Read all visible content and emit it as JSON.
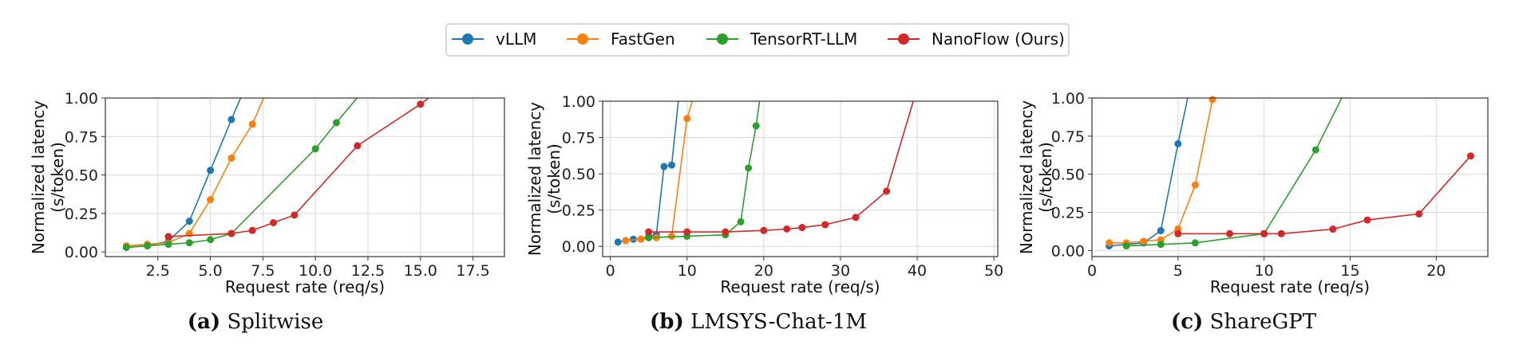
{
  "legend": [
    {
      "name": "vLLM",
      "color": "#1f77b4"
    },
    {
      "name": "FastGen",
      "color": "#ff7f0e"
    },
    {
      "name": "TensorRT-LLM",
      "color": "#2ca02c"
    },
    {
      "name": "NanoFlow (Ours)",
      "color": "#d62728"
    }
  ],
  "chart_data": [
    {
      "type": "line",
      "caption_tag": "(a)",
      "caption_title": "Splitwise",
      "xlabel": "Request rate (req/s)",
      "ylabel": "Normalized latency\n(s/token)",
      "xlim": [
        0,
        19
      ],
      "ylim": [
        -0.03,
        1.0
      ],
      "xticks": [
        2.5,
        5.0,
        7.5,
        10.0,
        12.5,
        15.0,
        17.5
      ],
      "xtick_labels": [
        "2.5",
        "5.0",
        "7.5",
        "10.0",
        "12.5",
        "15.0",
        "17.5"
      ],
      "yticks": [
        0.0,
        0.25,
        0.5,
        0.75,
        1.0
      ],
      "ytick_labels": [
        "0.00",
        "0.25",
        "0.50",
        "0.75",
        "1.00"
      ],
      "grid": true,
      "series": [
        {
          "name": "vLLM",
          "color": "#1f77b4",
          "x": [
            1,
            2,
            3,
            4,
            5,
            6,
            6.5
          ],
          "y": [
            0.03,
            0.04,
            0.07,
            0.2,
            0.53,
            0.86,
            1.02
          ]
        },
        {
          "name": "FastGen",
          "color": "#ff7f0e",
          "x": [
            1,
            2,
            3,
            4,
            5,
            6,
            7,
            7.6
          ],
          "y": [
            0.04,
            0.05,
            0.06,
            0.12,
            0.34,
            0.61,
            0.83,
            1.02
          ]
        },
        {
          "name": "TensorRT-LLM",
          "color": "#2ca02c",
          "x": [
            1,
            2,
            3,
            4,
            5,
            6,
            10,
            11,
            12.1
          ],
          "y": [
            0.03,
            0.04,
            0.05,
            0.06,
            0.08,
            0.12,
            0.67,
            0.84,
            1.02
          ]
        },
        {
          "name": "NanoFlow (Ours)",
          "color": "#d62728",
          "x": [
            3,
            6,
            7,
            8,
            9,
            12,
            15,
            15.6
          ],
          "y": [
            0.1,
            0.12,
            0.14,
            0.19,
            0.24,
            0.69,
            0.96,
            1.02
          ]
        }
      ]
    },
    {
      "type": "line",
      "caption_tag": "(b)",
      "caption_title": "LMSYS-Chat-1M",
      "xlabel": "Request rate (req/s)",
      "ylabel": "Normalized latency\n(s/token)",
      "xlim": [
        -1,
        50.5
      ],
      "ylim": [
        -0.07,
        1.0
      ],
      "xticks": [
        0,
        10,
        20,
        30,
        40,
        50
      ],
      "xtick_labels": [
        "0",
        "10",
        "20",
        "30",
        "40",
        "50"
      ],
      "yticks": [
        0.0,
        0.25,
        0.5,
        0.75,
        1.0
      ],
      "ytick_labels": [
        "0.00",
        "0.25",
        "0.50",
        "0.75",
        "1.00"
      ],
      "grid": true,
      "series": [
        {
          "name": "vLLM",
          "color": "#1f77b4",
          "x": [
            1,
            2,
            3,
            4,
            5,
            6,
            7,
            8,
            8.9
          ],
          "y": [
            0.03,
            0.04,
            0.05,
            0.05,
            0.07,
            0.08,
            0.55,
            0.56,
            1.02
          ]
        },
        {
          "name": "FastGen",
          "color": "#ff7f0e",
          "x": [
            2,
            4,
            6,
            8,
            10,
            10.8
          ],
          "y": [
            0.04,
            0.05,
            0.06,
            0.07,
            0.88,
            1.02
          ]
        },
        {
          "name": "TensorRT-LLM",
          "color": "#2ca02c",
          "x": [
            5,
            10,
            15,
            17,
            18,
            19,
            19.5
          ],
          "y": [
            0.06,
            0.07,
            0.08,
            0.17,
            0.54,
            0.83,
            1.02
          ]
        },
        {
          "name": "NanoFlow (Ours)",
          "color": "#d62728",
          "x": [
            5,
            10,
            15,
            20,
            23,
            25,
            28,
            32,
            36,
            39.6
          ],
          "y": [
            0.1,
            0.1,
            0.1,
            0.11,
            0.12,
            0.13,
            0.15,
            0.2,
            0.38,
            1.02
          ]
        }
      ]
    },
    {
      "type": "line",
      "caption_tag": "(c)",
      "caption_title": "ShareGPT",
      "xlabel": "Request rate (req/s)",
      "ylabel": "Normalized latency\n(s/token)",
      "xlim": [
        0,
        23
      ],
      "ylim": [
        -0.04,
        1.0
      ],
      "xticks": [
        0,
        5,
        10,
        15,
        20
      ],
      "xtick_labels": [
        "0",
        "5",
        "10",
        "15",
        "20"
      ],
      "yticks": [
        0.0,
        0.25,
        0.5,
        0.75,
        1.0
      ],
      "ytick_labels": [
        "0.00",
        "0.25",
        "0.50",
        "0.75",
        "1.00"
      ],
      "grid": true,
      "series": [
        {
          "name": "vLLM",
          "color": "#1f77b4",
          "x": [
            1,
            2,
            3,
            4,
            5,
            5.6
          ],
          "y": [
            0.03,
            0.04,
            0.05,
            0.13,
            0.7,
            1.02
          ]
        },
        {
          "name": "FastGen",
          "color": "#ff7f0e",
          "x": [
            1,
            2,
            3,
            4,
            5,
            6,
            7
          ],
          "y": [
            0.05,
            0.05,
            0.06,
            0.07,
            0.14,
            0.43,
            0.99
          ]
        },
        {
          "name": "TensorRT-LLM",
          "color": "#2ca02c",
          "x": [
            2,
            4,
            6,
            10,
            13,
            14.6
          ],
          "y": [
            0.03,
            0.04,
            0.05,
            0.11,
            0.66,
            1.02
          ]
        },
        {
          "name": "NanoFlow (Ours)",
          "color": "#d62728",
          "x": [
            5,
            8,
            10,
            11,
            14,
            16,
            19,
            22
          ],
          "y": [
            0.11,
            0.11,
            0.11,
            0.11,
            0.14,
            0.2,
            0.24,
            0.62
          ]
        }
      ]
    }
  ]
}
